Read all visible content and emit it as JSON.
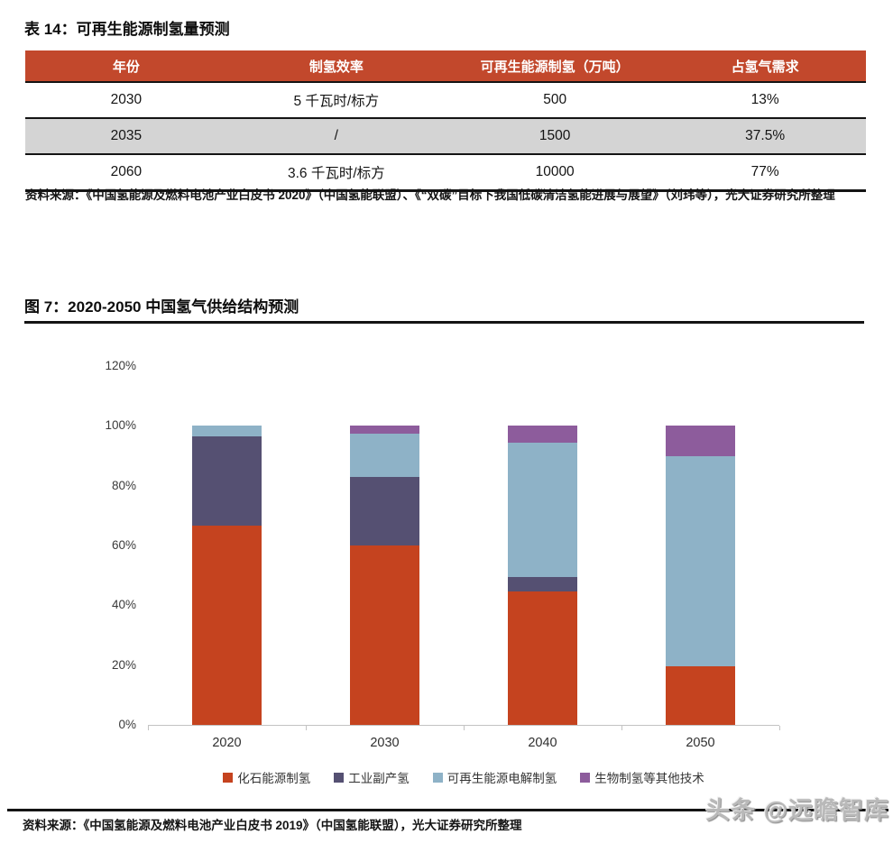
{
  "table": {
    "title": "表 14：可再生能源制氢量预测",
    "headers": [
      "年份",
      "制氢效率",
      "可再生能源制氢（万吨）",
      "占氢气需求"
    ],
    "rows": [
      [
        "2030",
        "5 千瓦时/标方",
        "500",
        "13%"
      ],
      [
        "2035",
        "/",
        "1500",
        "37.5%"
      ],
      [
        "2060",
        "3.6 千瓦时/标方",
        "10000",
        "77%"
      ]
    ],
    "header_bg": "#C2482C",
    "alt_row_bg": "#D4D4D4",
    "source": "资料来源：《中国氢能源及燃料电池产业白皮书 2020》（中国氢能联盟）、《“双碳”目标下我国低碳清洁氢能进展与展望》（刘玮等），光大证券研究所整理"
  },
  "figure": {
    "title": "图 7：2020-2050 中国氢气供给结构预测",
    "source": "资料来源：《中国氢能源及燃料电池产业白皮书 2019》（中国氢能联盟），光大证券研究所整理"
  },
  "watermark": "头条 @远瞻智库",
  "chart_data": {
    "type": "bar",
    "stacked": true,
    "title": "2020-2050 中国氢气供给结构预测",
    "categories": [
      "2020",
      "2030",
      "2040",
      "2050"
    ],
    "series": [
      {
        "name": "化石能源制氢",
        "color": "#C5431F",
        "values": [
          66.5,
          60,
          44.5,
          19.5
        ]
      },
      {
        "name": "工业副产氢",
        "color": "#555072",
        "values": [
          30,
          23,
          5,
          0
        ]
      },
      {
        "name": "可再生能源电解制氢",
        "color": "#8EB2C7",
        "values": [
          3.5,
          14.5,
          45,
          70.5
        ]
      },
      {
        "name": "生物制氢等其他技术",
        "color": "#8D5C9C",
        "values": [
          0,
          2.5,
          5.5,
          10
        ]
      }
    ],
    "ylim": [
      0,
      120
    ],
    "yticks": [
      0,
      20,
      40,
      60,
      80,
      100,
      120
    ],
    "y_unit": "%",
    "xlabel": "",
    "ylabel": "",
    "grid": false,
    "legend_position": "bottom"
  }
}
